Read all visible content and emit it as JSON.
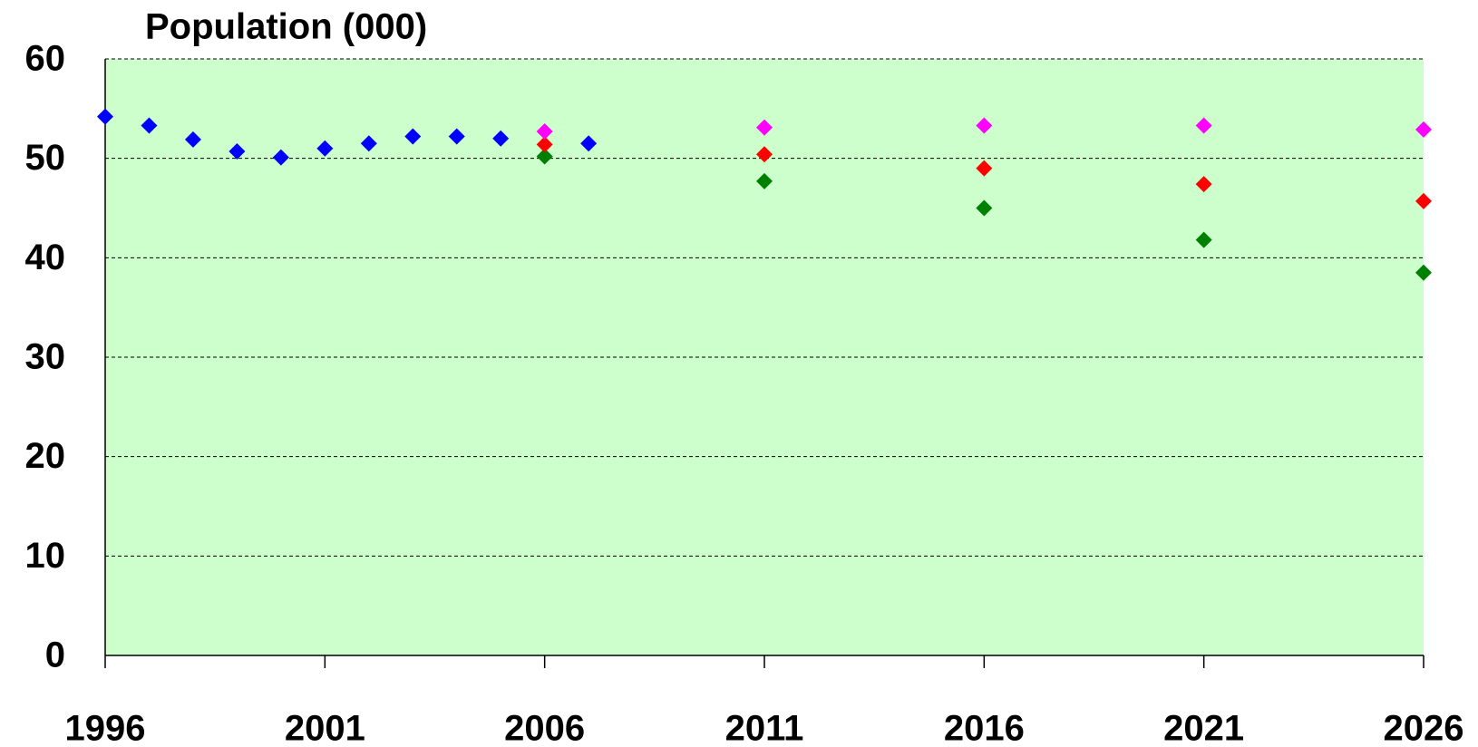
{
  "chart_data": {
    "type": "scatter",
    "title": "Population (000)",
    "xlim": [
      1996,
      2026
    ],
    "xticks": [
      1996,
      2001,
      2006,
      2011,
      2016,
      2021,
      2026
    ],
    "ylim": [
      0,
      60
    ],
    "yticks": [
      0,
      10,
      20,
      30,
      40,
      50,
      60
    ],
    "grid": true,
    "background": "#ccffcc",
    "series": [
      {
        "color": "#0000ff",
        "x": [
          1996,
          1997,
          1998,
          1999,
          2000,
          2001,
          2002,
          2003,
          2004,
          2005,
          2007
        ],
        "values": [
          54.2,
          53.3,
          51.9,
          50.7,
          50.1,
          51.0,
          51.5,
          52.2,
          52.2,
          52.0,
          51.5
        ]
      },
      {
        "color": "#008000",
        "x": [
          2006,
          2011,
          2016,
          2021,
          2026
        ],
        "values": [
          50.2,
          47.7,
          45.0,
          41.8,
          38.5
        ]
      },
      {
        "color": "#ff0000",
        "x": [
          2006,
          2011,
          2016,
          2021,
          2026
        ],
        "values": [
          51.4,
          50.4,
          49.0,
          47.4,
          45.7
        ]
      },
      {
        "color": "#ff00ff",
        "x": [
          2006,
          2011,
          2016,
          2021,
          2026
        ],
        "values": [
          52.7,
          53.1,
          53.3,
          53.3,
          52.9
        ]
      }
    ]
  }
}
